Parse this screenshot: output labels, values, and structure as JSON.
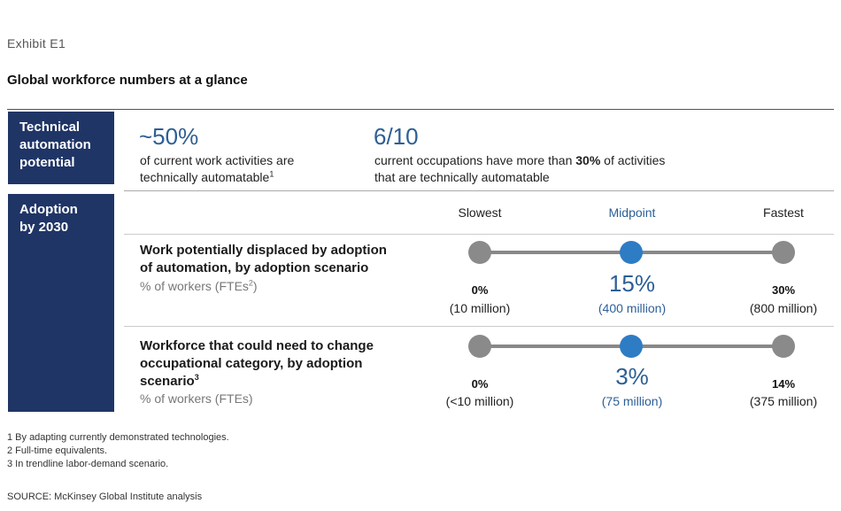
{
  "exhibit_label": "Exhibit E1",
  "title": "Global workforce numbers at a glance",
  "automation": {
    "label_lines": [
      "Technical",
      "automation",
      "potential"
    ],
    "stat1_value": "~50%",
    "stat1_desc_line1": "of current work activities are",
    "stat1_desc_line2": "technically automatable",
    "stat1_sup": "1",
    "stat2_value": "6/10",
    "stat2_desc_pre": "current occupations have more than ",
    "stat2_desc_bold": "30%",
    "stat2_desc_post": " of activities",
    "stat2_desc_line2": "that are technically automatable"
  },
  "adoption": {
    "label_lines": [
      "Adoption",
      "by 2030"
    ],
    "columns": [
      "Slowest",
      "Midpoint",
      "Fastest"
    ]
  },
  "colors": {
    "navy": "#1f3566",
    "accent_blue": "#2e7cc4",
    "number_blue": "#2d5f96",
    "dot_gray": "#8a8a8a"
  },
  "chart_data": {
    "type": "table",
    "scenarios": [
      "Slowest",
      "Midpoint",
      "Fastest"
    ],
    "rows": [
      {
        "title_lines": [
          "Work potentially displaced by adoption",
          "of automation, by adoption scenario"
        ],
        "title_sup": "",
        "unit": "% of workers (FTEs",
        "unit_sup": "2",
        "unit_close": ")",
        "values": [
          "0%",
          "15%",
          "30%"
        ],
        "counts": [
          "(10 million)",
          "(400 million)",
          "(800 million)"
        ]
      },
      {
        "title_lines": [
          "Workforce that could need to change",
          "occupational category, by adoption",
          "scenario"
        ],
        "title_sup": "3",
        "unit": "% of workers (FTEs)",
        "unit_sup": "",
        "unit_close": "",
        "values": [
          "0%",
          "3%",
          "14%"
        ],
        "counts": [
          "(<10 million)",
          "(75 million)",
          "(375 million)"
        ]
      }
    ]
  },
  "footnotes": [
    "1  By adapting currently demonstrated technologies.",
    "2  Full-time equivalents.",
    "3  In trendline labor-demand scenario."
  ],
  "source": "SOURCE: McKinsey Global Institute analysis"
}
